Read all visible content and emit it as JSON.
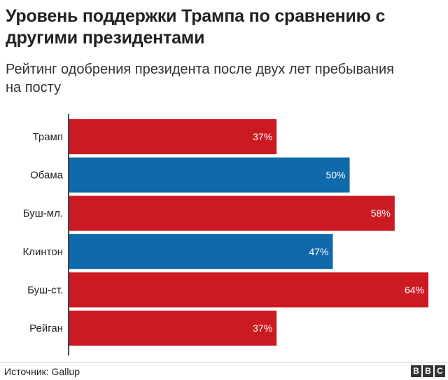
{
  "title": "Уровень поддержки Трампа по сравнению с другими президентами",
  "subtitle": "Рейтинг одобрения президента после двух лет пребывания на посту",
  "footer": {
    "source": "Источник: Gallup",
    "logo": [
      "B",
      "B",
      "C"
    ]
  },
  "colors": {
    "red": "#cc1a23",
    "blue": "#0f69aa",
    "axis": "#444444"
  },
  "chart_data": {
    "type": "bar",
    "orientation": "horizontal",
    "categories": [
      "Трамп",
      "Обама",
      "Буш-мл.",
      "Клинтон",
      "Буш-ст.",
      "Рейган"
    ],
    "values": [
      37,
      50,
      58,
      47,
      64,
      37
    ],
    "labels": [
      "37%",
      "50%",
      "58%",
      "47%",
      "64%",
      "37%"
    ],
    "bar_colors": [
      "#cc1a23",
      "#0f69aa",
      "#cc1a23",
      "#0f69aa",
      "#cc1a23",
      "#cc1a23"
    ],
    "title": "Уровень поддержки Трампа по сравнению с другими президентами",
    "xlim": [
      0,
      65
    ],
    "grid": false,
    "legend": "none"
  }
}
